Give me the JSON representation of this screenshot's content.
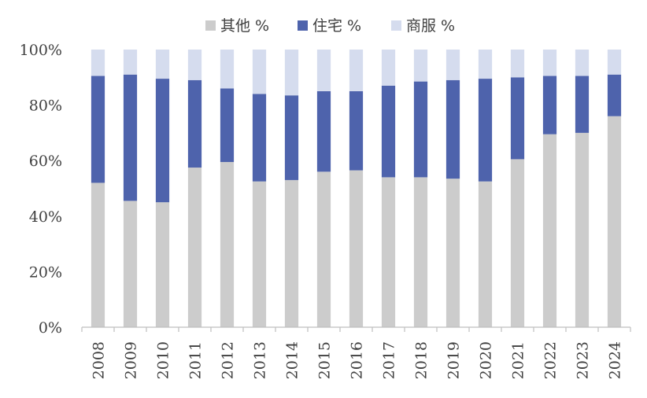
{
  "chart_data": {
    "type": "bar",
    "stacked": true,
    "percent": true,
    "title": "",
    "xlabel": "",
    "ylabel": "",
    "ylim": [
      0,
      100
    ],
    "yticks": [
      "0%",
      "20%",
      "40%",
      "60%",
      "80%",
      "100%"
    ],
    "categories": [
      "2008",
      "2009",
      "2010",
      "2011",
      "2012",
      "2013",
      "2014",
      "2015",
      "2016",
      "2017",
      "2018",
      "2019",
      "2020",
      "2021",
      "2022",
      "2023",
      "2024"
    ],
    "series": [
      {
        "name": "其他 %",
        "color": "#cccccc",
        "values": [
          52,
          45.5,
          45,
          57.5,
          59.5,
          52.5,
          53,
          56,
          56.5,
          54,
          54,
          53.5,
          52.5,
          60.5,
          69.5,
          70,
          76
        ]
      },
      {
        "name": "住宅 %",
        "color": "#4e63ac",
        "values": [
          38.5,
          45.5,
          44.5,
          31.5,
          26.5,
          31.5,
          30.5,
          29,
          28.5,
          33,
          34.5,
          35.5,
          37,
          29.5,
          21,
          20.5,
          15
        ]
      },
      {
        "name": "商服 %",
        "color": "#d5dcee",
        "values": [
          9.5,
          9,
          10.5,
          11,
          14,
          16,
          16.5,
          15,
          15,
          13,
          11.5,
          11,
          10.5,
          10,
          9.5,
          9.5,
          9
        ]
      }
    ],
    "legend": "top",
    "grid": false
  }
}
